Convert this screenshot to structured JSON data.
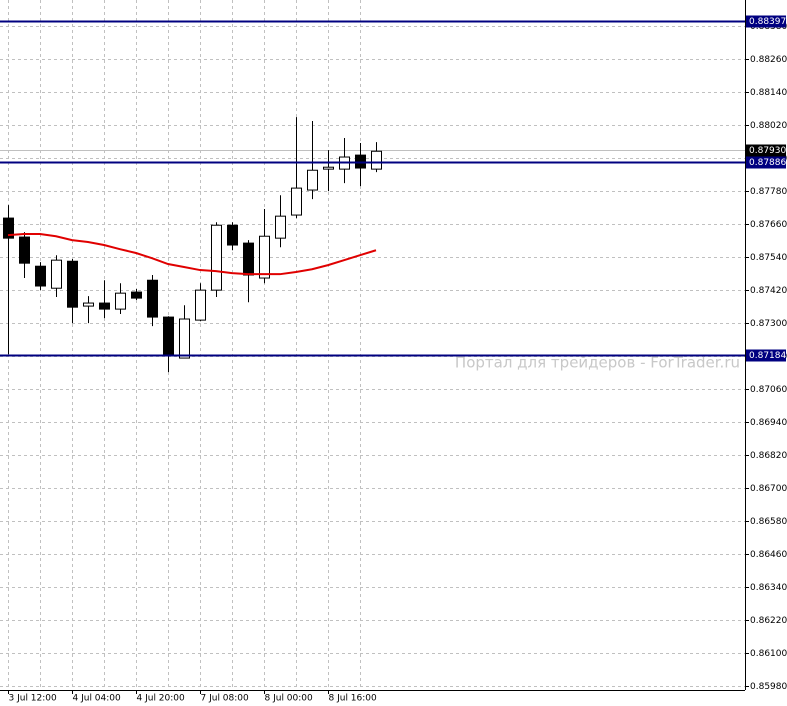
{
  "chart_data": {
    "type": "candlestick",
    "categories": [
      "3 Jul 12:00",
      null,
      null,
      null,
      "4 Jul 04:00",
      null,
      null,
      null,
      "4 Jul 20:00",
      null,
      null,
      null,
      "7 Jul 08:00",
      null,
      null,
      null,
      "8 Jul 00:00",
      null,
      null,
      null,
      "8 Jul 16:00",
      null,
      null,
      null
    ],
    "open": [
      0.87682,
      0.87613,
      0.87507,
      0.87427,
      0.87525,
      0.87362,
      0.87373,
      0.87351,
      0.87413,
      0.87456,
      0.87322,
      0.87173,
      0.87311,
      0.8742,
      0.87656,
      0.87591,
      0.87464,
      0.87609,
      0.87693,
      0.87784,
      0.8786,
      0.8786,
      0.87911,
      0.8786
    ],
    "high": [
      0.87729,
      0.87631,
      0.87522,
      0.87547,
      0.87533,
      0.87398,
      0.87456,
      0.87445,
      0.87424,
      0.87475,
      0.87325,
      0.87365,
      0.87445,
      0.87667,
      0.87667,
      0.87602,
      0.87715,
      0.87765,
      0.88049,
      0.88035,
      0.87929,
      0.87973,
      0.87955,
      0.87958
    ],
    "low": [
      0.87187,
      0.87464,
      0.8742,
      0.87395,
      0.873,
      0.873,
      0.87318,
      0.87333,
      0.87384,
      0.87289,
      0.87122,
      0.87173,
      0.87307,
      0.87395,
      0.87565,
      0.87376,
      0.87445,
      0.87576,
      0.87682,
      0.87751,
      0.8778,
      0.87809,
      0.87798,
      0.87849
    ],
    "close": [
      0.87609,
      0.87518,
      0.87435,
      0.87529,
      0.87358,
      0.87373,
      0.87351,
      0.87409,
      0.87391,
      0.87322,
      0.87184,
      0.87315,
      0.8742,
      0.87656,
      0.87584,
      0.87475,
      0.87616,
      0.87689,
      0.87791,
      0.87856,
      0.87867,
      0.87904,
      0.87864,
      0.87925
    ],
    "up_color": "#ffffff",
    "down_color": "#000000",
    "moving_average": {
      "color": "#e00000",
      "values": [
        0.8762,
        0.87624,
        0.87624,
        0.87616,
        0.87602,
        0.87595,
        0.87584,
        0.87569,
        0.87555,
        0.87536,
        0.87515,
        0.87504,
        0.87493,
        0.87489,
        0.87482,
        0.87478,
        0.87478,
        0.87478,
        0.87486,
        0.87496,
        0.87511,
        0.87529,
        0.87547,
        0.87565
      ]
    },
    "levels": [
      0.88397,
      0.87886,
      0.87184
    ],
    "level_color": "#000080",
    "current_price": {
      "value": 0.8793,
      "label": "0.87930"
    },
    "ylim": [
      0.85966,
      0.88475
    ],
    "yticks": [
      {
        "value": 0.8838,
        "label": "0.88380"
      },
      {
        "value": 0.8826,
        "label": "0.88260"
      },
      {
        "value": 0.8814,
        "label": "0.88140"
      },
      {
        "value": 0.8802,
        "label": "0.88020"
      },
      {
        "value": 0.879,
        "label": "0.87900"
      },
      {
        "value": 0.8778,
        "label": "0.87780"
      },
      {
        "value": 0.8766,
        "label": "0.87660"
      },
      {
        "value": 0.8754,
        "label": "0.87540"
      },
      {
        "value": 0.8742,
        "label": "0.87420"
      },
      {
        "value": 0.873,
        "label": "0.87300"
      },
      {
        "value": 0.8718,
        "label": "0.87180"
      },
      {
        "value": 0.8706,
        "label": "0.87060"
      },
      {
        "value": 0.8694,
        "label": "0.86940"
      },
      {
        "value": 0.8682,
        "label": "0.86820"
      },
      {
        "value": 0.867,
        "label": "0.86700"
      },
      {
        "value": 0.8658,
        "label": "0.86580"
      },
      {
        "value": 0.8646,
        "label": "0.86460"
      },
      {
        "value": 0.8634,
        "label": "0.86340"
      },
      {
        "value": 0.8622,
        "label": "0.86220"
      },
      {
        "value": 0.861,
        "label": "0.86100"
      },
      {
        "value": 0.8598,
        "label": "0.85980"
      }
    ],
    "grid": true,
    "watermark": "Портал для трейдеров - ForTrader.ru"
  }
}
